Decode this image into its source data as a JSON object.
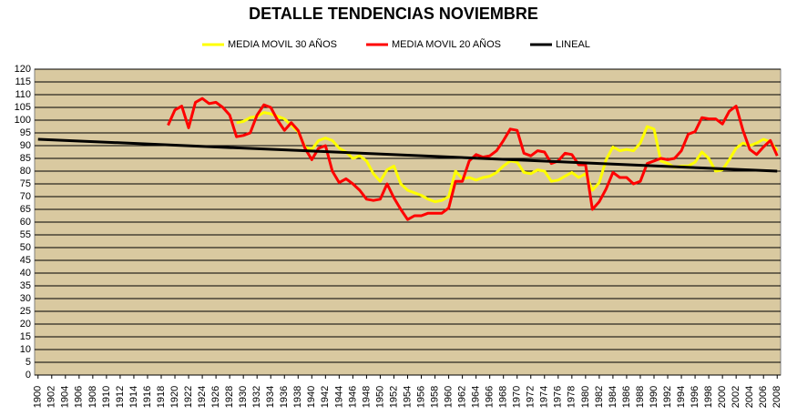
{
  "chart_data": {
    "type": "line",
    "title": "DETALLE TENDENCIAS NOVIEMBRE",
    "xlim": [
      1899.5,
      2008.5
    ],
    "xticks": [
      1900,
      1902,
      1904,
      1906,
      1908,
      1910,
      1912,
      1914,
      1916,
      1918,
      1920,
      1922,
      1924,
      1926,
      1928,
      1930,
      1932,
      1934,
      1936,
      1938,
      1940,
      1942,
      1944,
      1946,
      1948,
      1950,
      1952,
      1954,
      1956,
      1958,
      1960,
      1962,
      1964,
      1966,
      1968,
      1970,
      1972,
      1974,
      1976,
      1978,
      1980,
      1982,
      1984,
      1986,
      1988,
      1990,
      1992,
      1994,
      1996,
      1998,
      2000,
      2002,
      2004,
      2006,
      2008
    ],
    "ylim": [
      0,
      120
    ],
    "yticks": [
      0,
      5,
      10,
      15,
      20,
      25,
      30,
      35,
      40,
      45,
      50,
      55,
      60,
      65,
      70,
      75,
      80,
      85,
      90,
      95,
      100,
      105,
      110,
      115,
      120
    ],
    "grid": true,
    "legend": "top",
    "series": [
      {
        "name": "MEDIA MOVIL 30 AÑOS",
        "color": "#ffff00",
        "x": [
          1929,
          1930,
          1931,
          1932,
          1933,
          1934,
          1935,
          1936,
          1937,
          1938,
          1939,
          1940,
          1941,
          1942,
          1943,
          1944,
          1945,
          1946,
          1947,
          1948,
          1949,
          1950,
          1951,
          1952,
          1953,
          1954,
          1955,
          1956,
          1957,
          1958,
          1959,
          1960,
          1961,
          1962,
          1963,
          1964,
          1965,
          1966,
          1967,
          1968,
          1969,
          1970,
          1971,
          1972,
          1973,
          1974,
          1975,
          1976,
          1977,
          1978,
          1979,
          1980,
          1981,
          1982,
          1983,
          1984,
          1985,
          1986,
          1987,
          1988,
          1989,
          1990,
          1991,
          1992,
          1993,
          1994,
          1995,
          1996,
          1997,
          1998,
          1999,
          2000,
          2001,
          2002,
          2003,
          2004,
          2005,
          2006,
          2007,
          2008
        ],
        "values": [
          99,
          99.5,
          101,
          101.5,
          103,
          102.5,
          101.5,
          100.5,
          98,
          95.5,
          89.5,
          88.5,
          92,
          93,
          92,
          89,
          87.5,
          85,
          86,
          84,
          79,
          76,
          80.5,
          82,
          75,
          72.5,
          71.5,
          70.5,
          69,
          68,
          68.5,
          70,
          80,
          77,
          77.5,
          76.5,
          77.5,
          78,
          79.5,
          82,
          84,
          83.5,
          79.5,
          79,
          80.5,
          80,
          76,
          76.5,
          78,
          79.5,
          77.5,
          79,
          72.5,
          75.5,
          84.5,
          89.5,
          88,
          88.5,
          88,
          91,
          97.5,
          96.5,
          84,
          83,
          81.5,
          82,
          82,
          83.5,
          87.5,
          85,
          80,
          80.5,
          84.5,
          89,
          91,
          90,
          91,
          92.5,
          91.5,
          88
        ]
      },
      {
        "name": "MEDIA MOVIL 20 AÑOS",
        "color": "#ff0000",
        "x": [
          1919,
          1920,
          1921,
          1922,
          1923,
          1924,
          1925,
          1926,
          1927,
          1928,
          1929,
          1930,
          1931,
          1932,
          1933,
          1934,
          1935,
          1936,
          1937,
          1938,
          1939,
          1940,
          1941,
          1942,
          1943,
          1944,
          1945,
          1946,
          1947,
          1948,
          1949,
          1950,
          1951,
          1952,
          1953,
          1954,
          1955,
          1956,
          1957,
          1958,
          1959,
          1960,
          1961,
          1962,
          1963,
          1964,
          1965,
          1966,
          1967,
          1968,
          1969,
          1970,
          1971,
          1972,
          1973,
          1974,
          1975,
          1976,
          1977,
          1978,
          1979,
          1980,
          1981,
          1982,
          1983,
          1984,
          1985,
          1986,
          1987,
          1988,
          1989,
          1990,
          1991,
          1992,
          1993,
          1994,
          1995,
          1996,
          1997,
          1998,
          1999,
          2000,
          2001,
          2002,
          2003,
          2004,
          2005,
          2006,
          2007,
          2008
        ],
        "values": [
          98,
          104,
          105.5,
          97,
          107,
          108.5,
          106.5,
          107,
          105,
          102,
          93.5,
          94,
          95,
          102,
          106,
          105,
          100,
          96,
          99,
          96,
          89,
          84.5,
          89,
          90,
          80,
          75.5,
          77,
          75,
          72.5,
          69,
          68.5,
          69,
          75,
          69.5,
          65,
          61,
          62.5,
          62.5,
          63.5,
          63.5,
          63.5,
          65.5,
          76,
          76,
          84,
          86.5,
          85.5,
          86,
          88,
          92,
          96.5,
          96,
          87,
          86,
          88,
          87.5,
          83,
          84,
          87,
          86.5,
          82.5,
          82.5,
          65,
          68,
          73,
          79.5,
          77.5,
          77.5,
          75,
          76,
          83,
          84,
          85,
          84.5,
          85,
          88,
          94.5,
          95.5,
          101,
          100.5,
          100.5,
          98.5,
          103.5,
          105.5,
          96,
          88.5,
          86.5,
          89.5,
          92,
          86
        ]
      },
      {
        "name": "LINEAL",
        "color": "#000000",
        "x": [
          1900,
          2008
        ],
        "values": [
          92.5,
          80
        ]
      }
    ]
  }
}
